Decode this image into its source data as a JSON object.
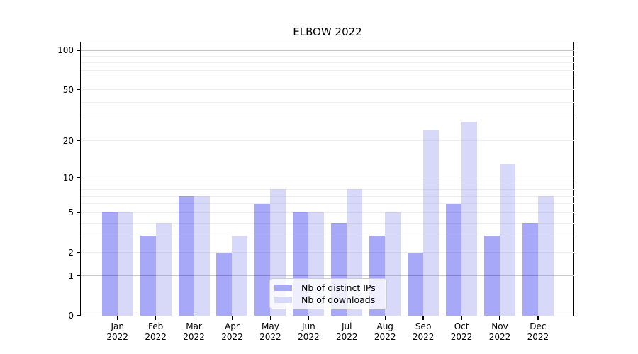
{
  "figure": {
    "title": "ELBOW 2022"
  },
  "chart_data": {
    "type": "bar",
    "title": "ELBOW 2022",
    "categories": [
      "Jan",
      "Feb",
      "Mar",
      "Apr",
      "May",
      "Jun",
      "Jul",
      "Aug",
      "Sep",
      "Oct",
      "Nov",
      "Dec"
    ],
    "category_year": "2022",
    "series": [
      {
        "name": "Nb of distinct IPs",
        "color": "#a8a8f8",
        "fill": "rgba(0,0,234,0.34)",
        "values": [
          5,
          3,
          7,
          2,
          6,
          5,
          4,
          3,
          2,
          6,
          3,
          4
        ]
      },
      {
        "name": "Nb of downloads",
        "color": "#d8d8f8",
        "fill": "rgba(141,141,234,0.34)",
        "values": [
          5,
          4,
          7,
          3,
          8,
          5,
          8,
          5,
          24,
          28,
          13,
          7
        ]
      }
    ],
    "xlabel": "",
    "ylabel": "",
    "y_scale": "log1p",
    "y_ticks": [
      0,
      1,
      2,
      5,
      10,
      20,
      50,
      100
    ],
    "ylim": [
      0,
      115
    ],
    "grid": true,
    "legend_position": "lower center",
    "colors": {
      "grid_major": "#c8c8c8",
      "grid_minor": "#eeeeee",
      "spine": "#000000",
      "background": "#ffffff",
      "text": "#000000"
    }
  }
}
